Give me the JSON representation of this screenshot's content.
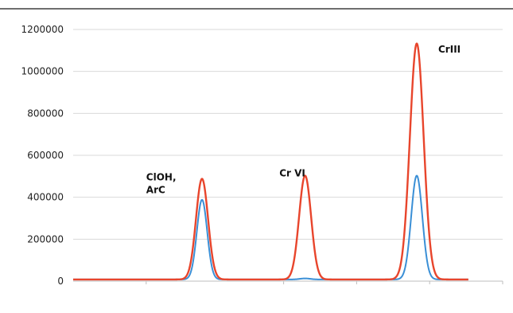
{
  "chart_data": {
    "type": "line",
    "title": "",
    "xlabel": "",
    "ylabel": "",
    "ylim": [
      0,
      1200000
    ],
    "xlim": [
      0,
      100
    ],
    "grid": true,
    "yticks": [
      0,
      200000,
      400000,
      600000,
      800000,
      1000000,
      1200000
    ],
    "ytick_labels": [
      "0",
      "200000",
      "400000",
      "600000",
      "800000",
      "1000000",
      "1200000"
    ],
    "series": [
      {
        "color": "#e8452c",
        "peaks": [
          {
            "x": 30,
            "height": 480000,
            "width": 1.4
          },
          {
            "x": 54,
            "height": 495000,
            "width": 1.4
          },
          {
            "x": 80,
            "height": 1125000,
            "width": 1.6
          }
        ],
        "baseline": 8000
      },
      {
        "color": "#3a8fd6",
        "peaks": [
          {
            "x": 30,
            "height": 380000,
            "width": 1.2
          },
          {
            "x": 54,
            "height": 5000,
            "width": 1.2
          },
          {
            "x": 80,
            "height": 495000,
            "width": 1.3
          }
        ],
        "baseline": 8000
      }
    ],
    "annotations": [
      {
        "text": "ClOH,",
        "x": 17,
        "y": 480000
      },
      {
        "text": "ArC",
        "x": 17,
        "y": 420000
      },
      {
        "text": "Cr VI",
        "x": 48,
        "y": 500000
      },
      {
        "text": "CrIII",
        "x": 85,
        "y": 1090000
      }
    ]
  }
}
